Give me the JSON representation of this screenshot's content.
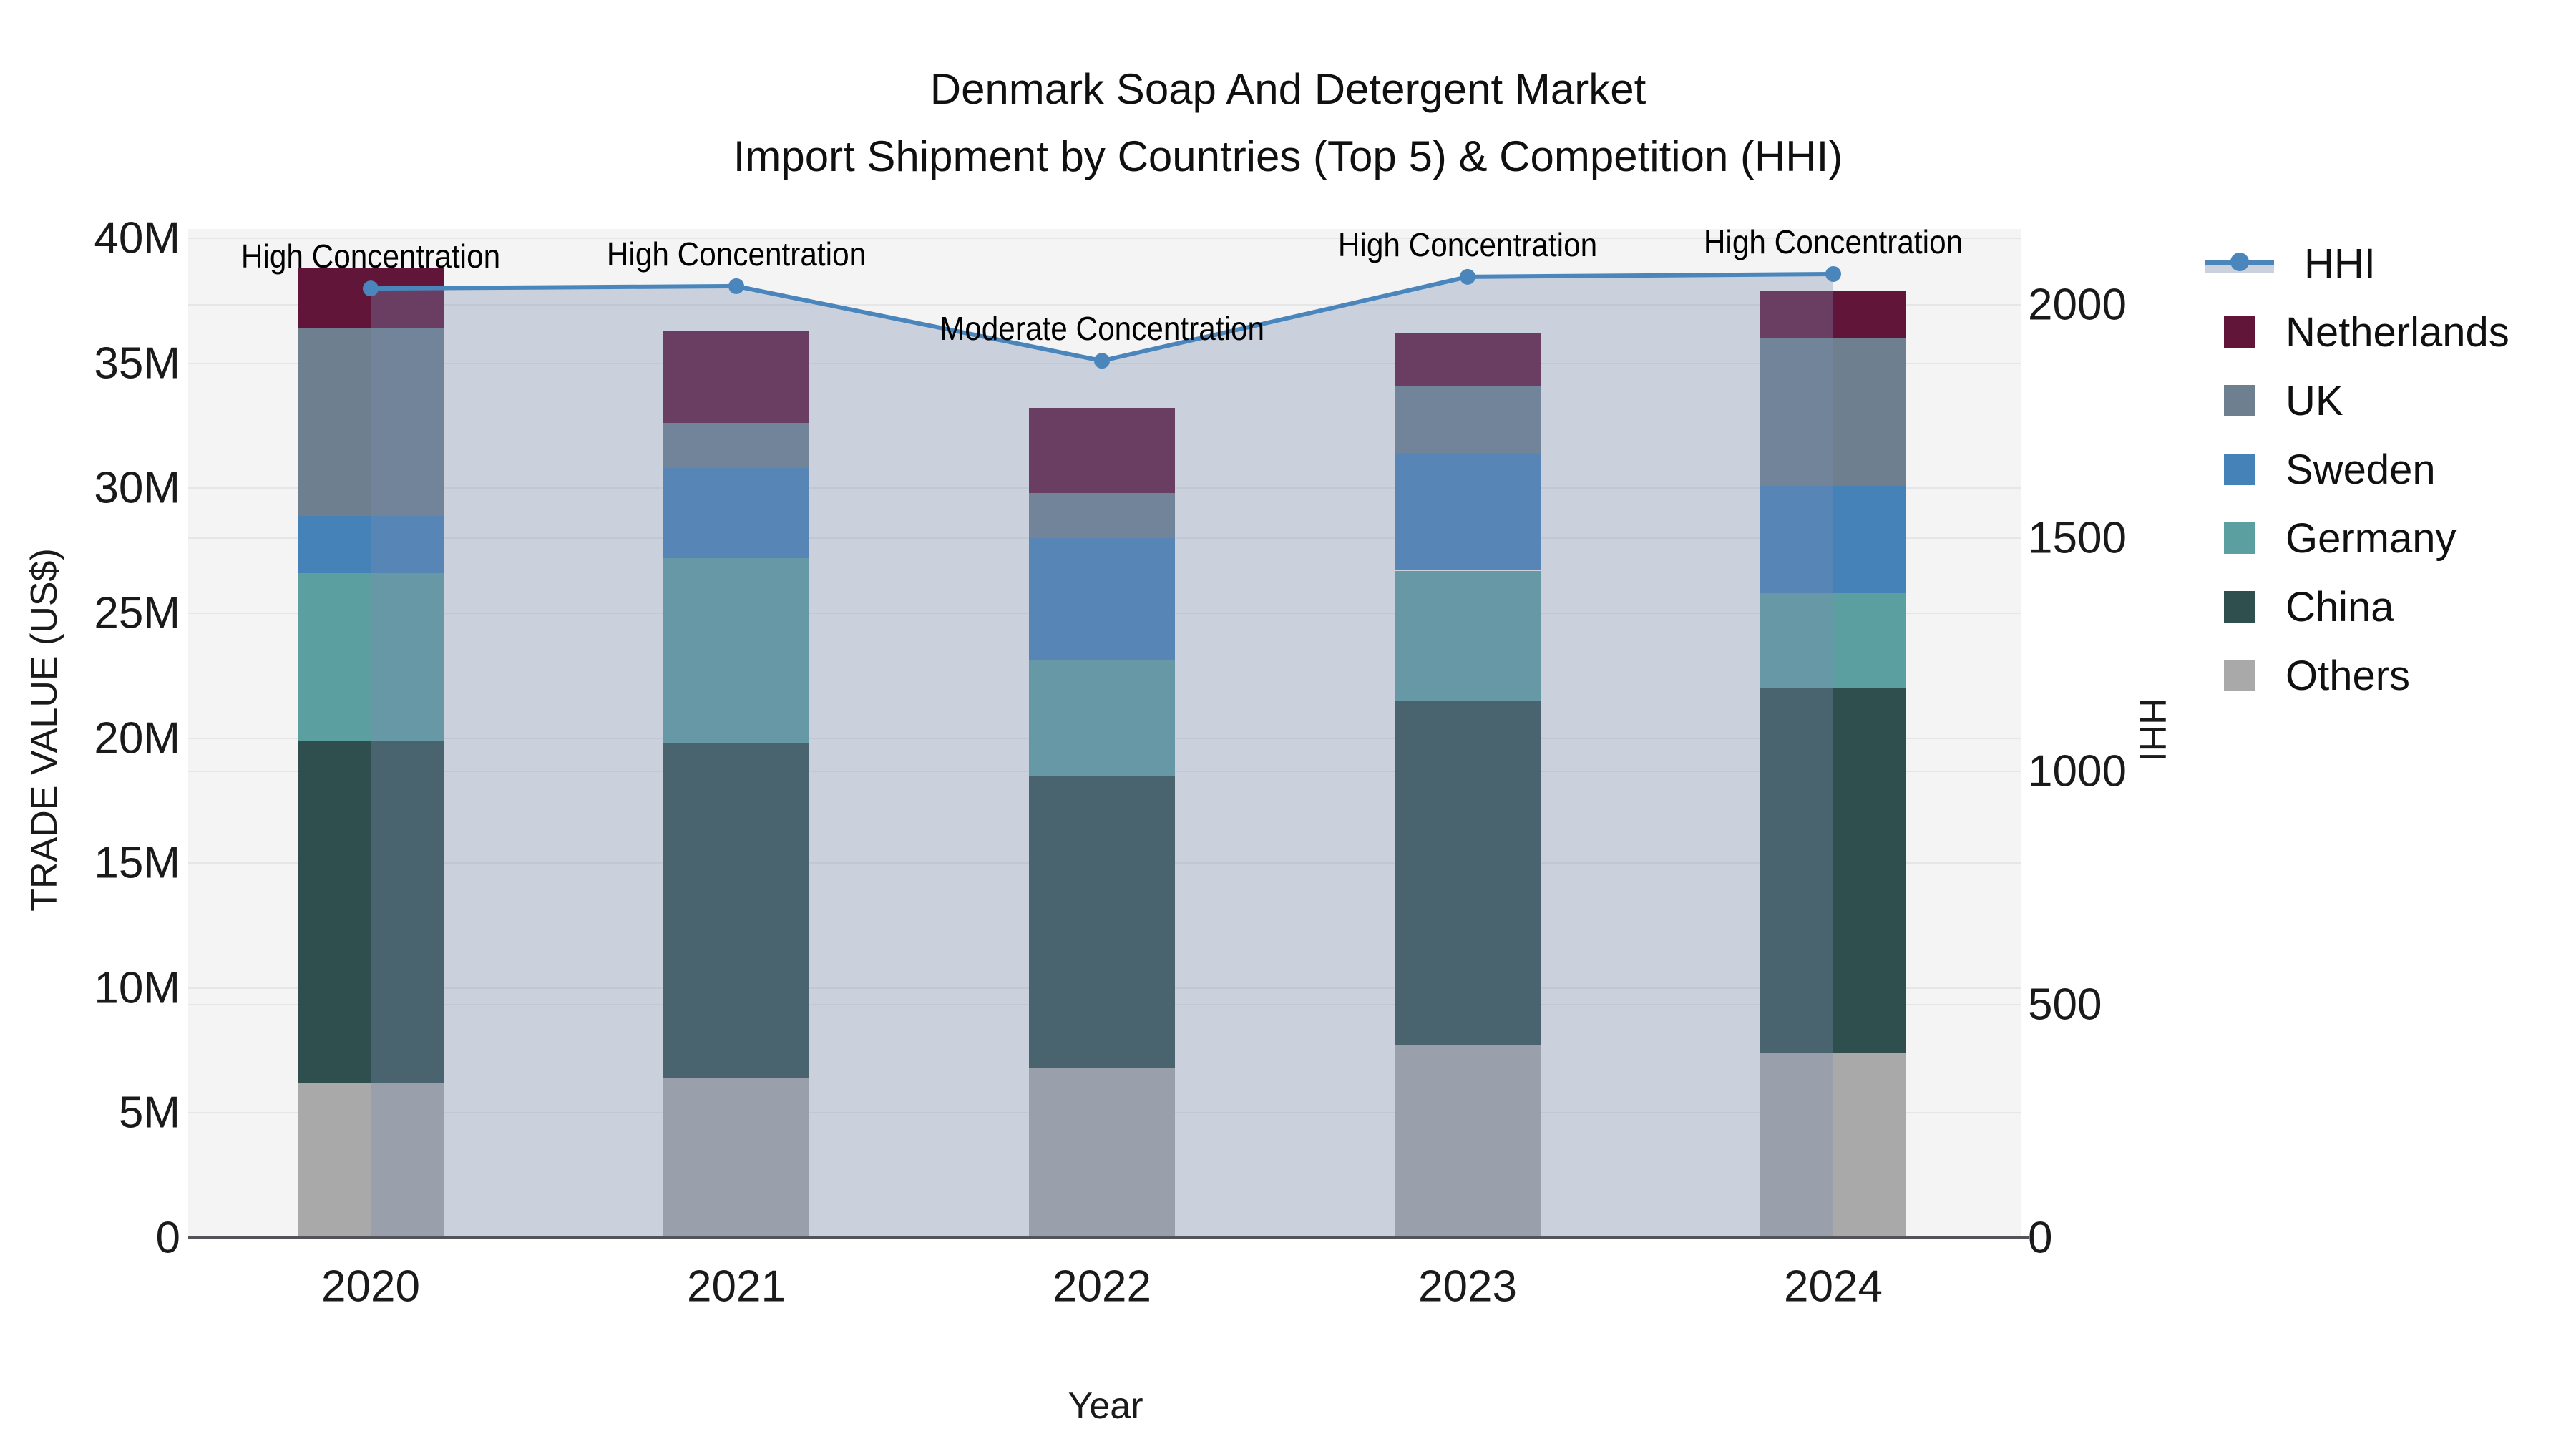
{
  "title": {
    "line1": "Denmark Soap And Detergent Market",
    "line2": "Import Shipment by Countries (Top 5) & Competition (HHI)"
  },
  "axes": {
    "left": {
      "label": "TRADE VALUE (US$)",
      "ticks": [
        {
          "label": "0",
          "value": 0
        },
        {
          "label": "5M",
          "value": 5
        },
        {
          "label": "10M",
          "value": 10
        },
        {
          "label": "15M",
          "value": 15
        },
        {
          "label": "20M",
          "value": 20
        },
        {
          "label": "25M",
          "value": 25
        },
        {
          "label": "30M",
          "value": 30
        },
        {
          "label": "35M",
          "value": 35
        },
        {
          "label": "40M",
          "value": 40
        }
      ],
      "range_millions": [
        0,
        40
      ]
    },
    "right": {
      "label": "HHI",
      "ticks": [
        {
          "label": "0",
          "value": 0
        },
        {
          "label": "500",
          "value": 500
        },
        {
          "label": "1000",
          "value": 1000
        },
        {
          "label": "1500",
          "value": 1500
        },
        {
          "label": "2000",
          "value": 2000
        }
      ],
      "range": [
        0,
        2000
      ]
    },
    "x": {
      "label": "Year",
      "categories": [
        "2020",
        "2021",
        "2022",
        "2023",
        "2024"
      ]
    }
  },
  "chart_data": {
    "type": "bar",
    "subtype": "stacked-bar-with-line",
    "unit": "US$ millions (left axis), HHI index (right axis)",
    "categories": [
      "2020",
      "2021",
      "2022",
      "2023",
      "2024"
    ],
    "series": [
      {
        "name": "Others",
        "type": "bar",
        "color": "#A9A9AA",
        "values": [
          6.2,
          6.4,
          6.8,
          7.7,
          7.4
        ]
      },
      {
        "name": "China",
        "type": "bar",
        "color": "#2F4E4E",
        "values": [
          13.7,
          13.4,
          11.7,
          13.8,
          14.6
        ]
      },
      {
        "name": "Germany",
        "type": "bar",
        "color": "#5C9FA1",
        "values": [
          6.7,
          7.4,
          4.6,
          5.2,
          3.8
        ]
      },
      {
        "name": "Sweden",
        "type": "bar",
        "color": "#4482B8",
        "values": [
          2.3,
          3.6,
          4.9,
          4.7,
          4.3
        ]
      },
      {
        "name": "UK",
        "type": "bar",
        "color": "#6E8090",
        "values": [
          7.5,
          1.8,
          1.8,
          2.7,
          5.9
        ]
      },
      {
        "name": "Netherlands",
        "type": "bar",
        "color": "#611539",
        "values": [
          2.4,
          3.7,
          3.4,
          2.1,
          1.9
        ]
      },
      {
        "name": "HHI",
        "type": "line",
        "axis": "right",
        "color": "#4A86BC",
        "fill": "rgba(124,141,175,0.35)",
        "values": [
          2035,
          2040,
          1880,
          2060,
          2066
        ]
      }
    ],
    "stack_totals_millions": [
      38.8,
      36.3,
      33.2,
      36.2,
      37.9
    ],
    "title": "Denmark Soap And Detergent Market — Import Shipment by Countries (Top 5) & Competition (HHI)",
    "xlabel": "Year",
    "ylabel_left": "TRADE VALUE (US$)",
    "ylabel_right": "HHI",
    "ylim_left_millions": [
      0,
      40
    ],
    "ylim_right": [
      0,
      2000
    ],
    "grid": true,
    "legend_position": "right"
  },
  "annotations": [
    {
      "category": "2020",
      "text": "High Concentration"
    },
    {
      "category": "2021",
      "text": "High Concentration"
    },
    {
      "category": "2022",
      "text": "Moderate Concentration"
    },
    {
      "category": "2023",
      "text": "High Concentration"
    },
    {
      "category": "2024",
      "text": "High Concentration"
    }
  ],
  "legend": [
    {
      "label": "HHI",
      "swatch": "line-marker",
      "color": "#4A86BC"
    },
    {
      "label": "Netherlands",
      "swatch": "square",
      "color": "#611539"
    },
    {
      "label": "UK",
      "swatch": "square",
      "color": "#6E8090"
    },
    {
      "label": "Sweden",
      "swatch": "square",
      "color": "#4482B8"
    },
    {
      "label": "Germany",
      "swatch": "square",
      "color": "#5C9FA1"
    },
    {
      "label": "China",
      "swatch": "square",
      "color": "#2F4E4E"
    },
    {
      "label": "Others",
      "swatch": "square",
      "color": "#A9A9AA"
    }
  ],
  "colors": {
    "plot_background": "#f4f4f4",
    "figure_background": "#ffffff",
    "gridline": "#e6e6e6",
    "axis_line": "#53545a",
    "text": "#161616",
    "hhi_line": "#4A86BC",
    "hhi_area_fill": "rgba(124,141,175,0.35)"
  }
}
